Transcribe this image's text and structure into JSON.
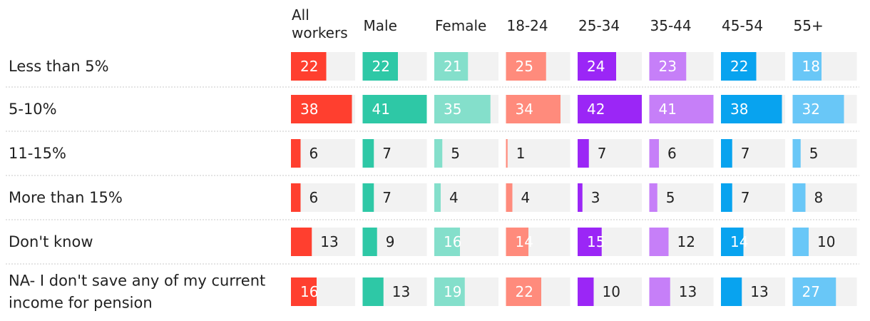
{
  "chart_data": {
    "type": "bar",
    "title": "",
    "xlabel": "",
    "ylabel": "",
    "xlim": [
      0,
      45
    ],
    "categories": [
      "Less than 5%",
      "5-10%",
      "11-15%",
      "More than 15%",
      "Don't know",
      "NA- I don't save any of my current income for pension"
    ],
    "category_lines": [
      [
        "Less than 5%"
      ],
      [
        "5-10%"
      ],
      [
        "11-15%"
      ],
      [
        "More than 15%"
      ],
      [
        "Don't know"
      ],
      [
        "NA- I don't save any of my current",
        "income for pension"
      ]
    ],
    "series": [
      {
        "name": "All workers",
        "name_lines": [
          "All",
          "workers"
        ],
        "color": "#ff3f2f",
        "values": [
          22,
          38,
          6,
          6,
          13,
          16
        ]
      },
      {
        "name": "Male",
        "name_lines": [
          "Male"
        ],
        "color": "#2ec8a6",
        "values": [
          22,
          41,
          7,
          7,
          9,
          13
        ]
      },
      {
        "name": "Female",
        "name_lines": [
          "Female"
        ],
        "color": "#84dfcb",
        "values": [
          21,
          35,
          5,
          4,
          16,
          19
        ]
      },
      {
        "name": "18-24",
        "name_lines": [
          "18-24"
        ],
        "color": "#ff8b7c",
        "values": [
          25,
          34,
          1,
          4,
          14,
          22
        ]
      },
      {
        "name": "25-34",
        "name_lines": [
          "25-34"
        ],
        "color": "#9b26f6",
        "values": [
          24,
          42,
          7,
          3,
          15,
          10
        ]
      },
      {
        "name": "35-44",
        "name_lines": [
          "35-44"
        ],
        "color": "#c67ff8",
        "values": [
          23,
          41,
          6,
          5,
          12,
          13
        ]
      },
      {
        "name": "45-54",
        "name_lines": [
          "45-54"
        ],
        "color": "#08a3ef",
        "values": [
          22,
          38,
          7,
          7,
          14,
          13
        ]
      },
      {
        "name": "55+",
        "name_lines": [
          "55+"
        ],
        "color": "#69c7f7",
        "values": [
          18,
          32,
          5,
          8,
          10,
          27
        ]
      }
    ]
  },
  "colors": {
    "track": "#f2f2f2",
    "separator": "#c8c8c8",
    "text": "#222222",
    "label_inside": "#ffffff"
  }
}
